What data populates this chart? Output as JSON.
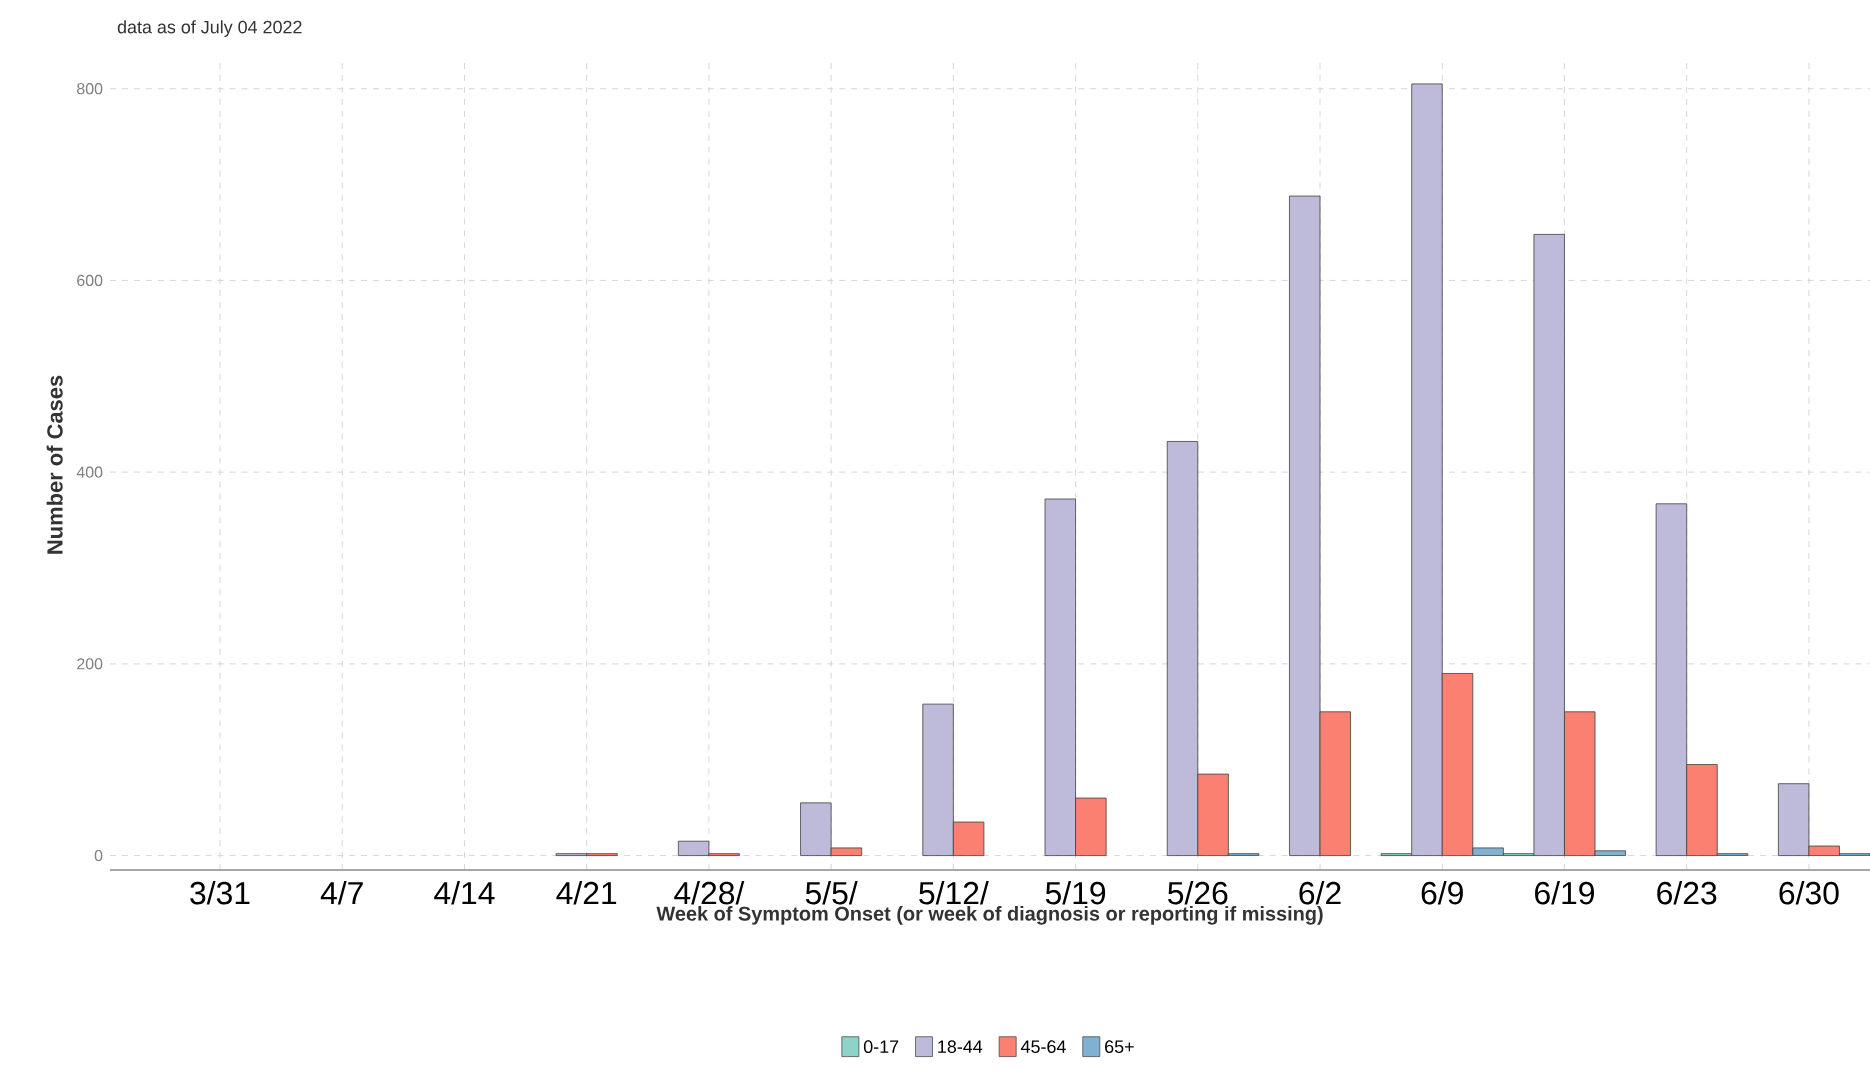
{
  "chart_data": {
    "type": "bar",
    "title": "data as of July 04 2022",
    "xlabel": "Week of Symptom Onset (or week of diagnosis or reporting if missing)",
    "ylabel": "Number of Cases",
    "categories": [
      "3/31",
      "4/7",
      "4/14",
      "4/21",
      "4/28/",
      "5/5/",
      "5/12/",
      "5/19",
      "5/26",
      "6/2",
      "6/9",
      "6/19",
      "6/23",
      "6/30"
    ],
    "series": [
      {
        "name": "0-17",
        "color": "#8dd3c7",
        "values": [
          null,
          null,
          null,
          null,
          null,
          null,
          null,
          null,
          null,
          null,
          2,
          2,
          null,
          null
        ]
      },
      {
        "name": "18-44",
        "color": "#bebada",
        "values": [
          null,
          null,
          null,
          2,
          15,
          55,
          158,
          372,
          432,
          688,
          805,
          648,
          367,
          75
        ]
      },
      {
        "name": "45-64",
        "color": "#fb8072",
        "values": [
          null,
          null,
          null,
          2,
          2,
          8,
          35,
          60,
          85,
          150,
          190,
          150,
          95,
          10
        ]
      },
      {
        "name": "65+",
        "color": "#80b1d3",
        "values": [
          null,
          null,
          null,
          null,
          null,
          null,
          null,
          null,
          2,
          null,
          8,
          5,
          2,
          2
        ]
      }
    ],
    "ylim": [
      -15,
      830
    ],
    "yticks": [
      0,
      200,
      400,
      600,
      800
    ],
    "grid": true,
    "legend": "bottom"
  }
}
